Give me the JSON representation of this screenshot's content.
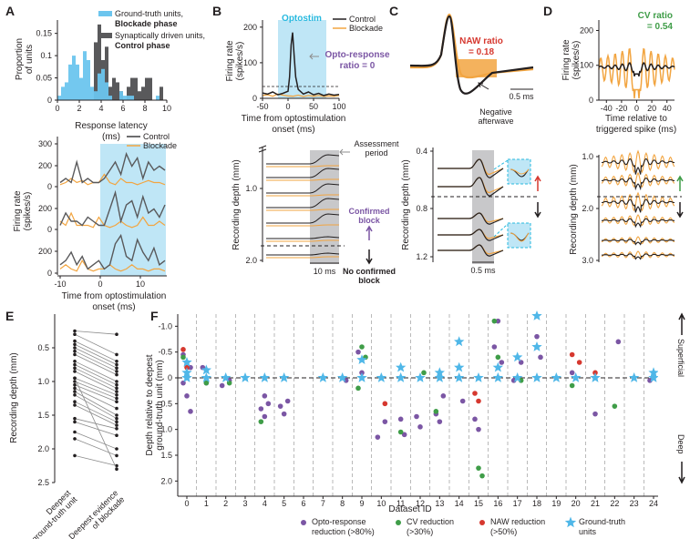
{
  "panels": {
    "A": "A",
    "B": "B",
    "C": "C",
    "D": "D",
    "E": "E",
    "F": "F"
  },
  "colors": {
    "blue": "#6cc5ee",
    "dark": "#59595b",
    "orange": "#f2a541",
    "purple": "#7b56a4",
    "green": "#3f9d48",
    "red": "#d6382f",
    "star": "#4fb7e8",
    "cyan": "#28b9df",
    "shade": "#bfe6f6",
    "gray": "#c8c8ca"
  },
  "A": {
    "ylabel": "Proportion\nof units",
    "xlabel": "Response latency\n(ms)",
    "legend": [
      {
        "line1": "Ground-truth units,",
        "line2": "Blockade phase"
      },
      {
        "line1": "Synaptically driven units,",
        "line2": "Control phase"
      }
    ],
    "yticks": [
      "0",
      "0.05",
      "0.1",
      "0.15"
    ],
    "xticks": [
      "0",
      "2",
      "4",
      "6",
      "8",
      "10"
    ],
    "traces_legend": [
      "Control",
      "Blockade"
    ],
    "traces_ylabel": "Firing rate\n(spikes/s)",
    "traces_yticks": [
      "0",
      "200",
      "0",
      "200",
      "0",
      "200",
      "300"
    ],
    "traces_xticks": [
      "-10",
      "0",
      "10"
    ],
    "traces_xlabel": "Time from optostimulation\nonset (ms)"
  },
  "B": {
    "title": "Optostim",
    "legend": [
      "Control",
      "Blockade"
    ],
    "ylabel": "Firing rate\n(spikes/s)",
    "yticks": [
      "0",
      "100",
      "200"
    ],
    "xticks": [
      "-50",
      "0",
      "50",
      "100"
    ],
    "xlabel": "Time from optostimulation\nonset (ms)",
    "annot1": "Opto-response",
    "annot2": "ratio = 0",
    "assess": "Assessment\nperiod",
    "depth_ylabel": "Recording depth (mm)",
    "depth_ticks": [
      "1.0",
      "2.0"
    ],
    "confirmed": "Confirmed\nblock",
    "no_confirmed": "No confirmed\nblock",
    "scale": "10 ms"
  },
  "C": {
    "naw_label": "NAW ratio",
    "naw_value": "= 0.18",
    "scale": "0.5 ms",
    "negative": "Negative\nafterwave",
    "depth_ylabel": "Recording depth (mm)",
    "depth_ticks": [
      "0.8",
      "0.4",
      "1.2"
    ],
    "scale2": "0.5 ms"
  },
  "D": {
    "cv_label": "CV ratio",
    "cv_value": "= 0.54",
    "ylabel": "Firing rate\n(spikes/s)",
    "yticks": [
      "0",
      "100",
      "200"
    ],
    "xticks": [
      "-40",
      "-20",
      "0",
      "20",
      "40"
    ],
    "xlabel": "Time relative to\ntriggered spike (ms)",
    "depth_ylabel": "Recording depth (mm)",
    "depth_ticks": [
      "1.0",
      "2.0",
      "3.0"
    ]
  },
  "E": {
    "ylabel": "Recording depth (mm)",
    "yticks": [
      "0.5",
      "1.0",
      "1.5",
      "2.0",
      "2.5"
    ],
    "xlabels": [
      "Deepest\nground-truth unit",
      "Deepest evidence\nof blockade"
    ],
    "pairs": [
      [
        0.25,
        0.3
      ],
      [
        0.3,
        0.6
      ],
      [
        0.4,
        0.7
      ],
      [
        0.45,
        0.75
      ],
      [
        0.5,
        0.8
      ],
      [
        0.55,
        0.85
      ],
      [
        0.6,
        0.9
      ],
      [
        0.7,
        1.0
      ],
      [
        0.75,
        1.05
      ],
      [
        0.8,
        1.1
      ],
      [
        0.85,
        1.15
      ],
      [
        0.95,
        1.2
      ],
      [
        1.0,
        1.25
      ],
      [
        1.05,
        1.3
      ],
      [
        1.1,
        1.4
      ],
      [
        1.15,
        1.5
      ],
      [
        1.2,
        1.55
      ],
      [
        1.3,
        1.6
      ],
      [
        1.35,
        1.65
      ],
      [
        1.55,
        1.7
      ],
      [
        1.6,
        1.8
      ],
      [
        1.75,
        2.0
      ],
      [
        1.85,
        2.1
      ],
      [
        2.1,
        2.25
      ],
      [
        0.95,
        2.3
      ]
    ]
  },
  "F": {
    "ylabel": "Depth relative to deepest\nground-truth unit (mm)",
    "xlabel": "Dataset ID",
    "superficial": "Superficial",
    "deep": "Deep",
    "yticks": [
      "-1.0",
      "-0.5",
      "0",
      "0.5",
      "1.0",
      "1.5",
      "2.0"
    ],
    "xticks": [
      "0",
      "1",
      "2",
      "3",
      "4",
      "5",
      "6",
      "7",
      "8",
      "9",
      "10",
      "11",
      "12",
      "13",
      "14",
      "15",
      "16",
      "17",
      "18",
      "19",
      "20",
      "21",
      "22",
      "23",
      "24"
    ],
    "legend": [
      {
        "label": "Opto-response\nreduction (>80%)",
        "type": "purple"
      },
      {
        "label": "CV reduction\n(>30%)",
        "type": "green"
      },
      {
        "label": "NAW reduction\n(>50%)",
        "type": "red"
      },
      {
        "label": "Ground-truth\nunits",
        "type": "star"
      }
    ],
    "chart_data": {
      "type": "scatter",
      "xlabel": "Dataset ID",
      "ylabel": "Depth relative to deepest ground-truth unit (mm)",
      "ylim": [
        -1.3,
        2.1
      ],
      "series": [
        {
          "name": "Opto-response reduction (>80%)",
          "points": [
            [
              0,
              -0.45
            ],
            [
              0,
              -0.3
            ],
            [
              0,
              -0.2
            ],
            [
              0,
              0.1
            ],
            [
              0,
              0.35
            ],
            [
              0,
              0.65
            ],
            [
              1,
              -0.2
            ],
            [
              1,
              0.1
            ],
            [
              2,
              0.05
            ],
            [
              2,
              0.15
            ],
            [
              4,
              0.35
            ],
            [
              4,
              0.5
            ],
            [
              4,
              0.6
            ],
            [
              4,
              0.75
            ],
            [
              5,
              0.45
            ],
            [
              5,
              0.55
            ],
            [
              5,
              0.7
            ],
            [
              8,
              0.05
            ],
            [
              9,
              -0.5
            ],
            [
              9,
              -0.1
            ],
            [
              10,
              0.85
            ],
            [
              10,
              1.15
            ],
            [
              11,
              0.8
            ],
            [
              11,
              1.1
            ],
            [
              12,
              0.75
            ],
            [
              12,
              0.95
            ],
            [
              13,
              0.35
            ],
            [
              13,
              0.7
            ],
            [
              13,
              0.85
            ],
            [
              14,
              0.45
            ],
            [
              15,
              0.8
            ],
            [
              15,
              1.0
            ],
            [
              16,
              -0.3
            ],
            [
              16,
              -0.6
            ],
            [
              16,
              -1.1
            ],
            [
              17,
              -0.3
            ],
            [
              17,
              0.05
            ],
            [
              18,
              -0.8
            ],
            [
              18,
              -0.4
            ],
            [
              20,
              -0.1
            ],
            [
              21,
              0.7
            ],
            [
              22,
              -0.7
            ],
            [
              24,
              0.05
            ]
          ]
        },
        {
          "name": "CV reduction (>30%)",
          "points": [
            [
              0,
              -0.4
            ],
            [
              1,
              0.1
            ],
            [
              2,
              0.1
            ],
            [
              4,
              0.85
            ],
            [
              9,
              -0.6
            ],
            [
              9,
              -0.4
            ],
            [
              9,
              0.2
            ],
            [
              11,
              1.05
            ],
            [
              12,
              -0.1
            ],
            [
              13,
              0.65
            ],
            [
              15,
              1.75
            ],
            [
              15,
              1.9
            ],
            [
              16,
              -1.1
            ],
            [
              16,
              -0.4
            ],
            [
              17,
              0.05
            ],
            [
              20,
              0.15
            ],
            [
              22,
              0.55
            ]
          ]
        },
        {
          "name": "NAW reduction (>50%)",
          "points": [
            [
              0,
              -0.55
            ],
            [
              0,
              -0.2
            ],
            [
              10,
              0.5
            ],
            [
              15,
              0.3
            ],
            [
              15,
              0.45
            ],
            [
              20,
              -0.3
            ],
            [
              20,
              -0.45
            ],
            [
              21,
              -0.1
            ]
          ]
        },
        {
          "name": "Ground-truth units",
          "points": [
            [
              0,
              -0.3
            ],
            [
              0,
              -0.1
            ],
            [
              0,
              0
            ],
            [
              1,
              -0.15
            ],
            [
              1,
              0
            ],
            [
              2,
              0
            ],
            [
              3,
              0
            ],
            [
              4,
              0
            ],
            [
              5,
              0
            ],
            [
              7,
              0
            ],
            [
              8,
              0
            ],
            [
              9,
              -0.35
            ],
            [
              9,
              0
            ],
            [
              10,
              0
            ],
            [
              11,
              -0.2
            ],
            [
              11,
              0
            ],
            [
              12,
              0
            ],
            [
              13,
              -0.1
            ],
            [
              13,
              0
            ],
            [
              14,
              -0.7
            ],
            [
              14,
              -0.2
            ],
            [
              14,
              0
            ],
            [
              15,
              0
            ],
            [
              16,
              -0.2
            ],
            [
              16,
              0
            ],
            [
              17,
              -0.4
            ],
            [
              17,
              0
            ],
            [
              18,
              -1.2
            ],
            [
              18,
              -0.6
            ],
            [
              18,
              0
            ],
            [
              19,
              0
            ],
            [
              20,
              0
            ],
            [
              21,
              0
            ],
            [
              23,
              0
            ],
            [
              24,
              -0.1
            ],
            [
              24,
              0
            ]
          ]
        }
      ]
    }
  }
}
